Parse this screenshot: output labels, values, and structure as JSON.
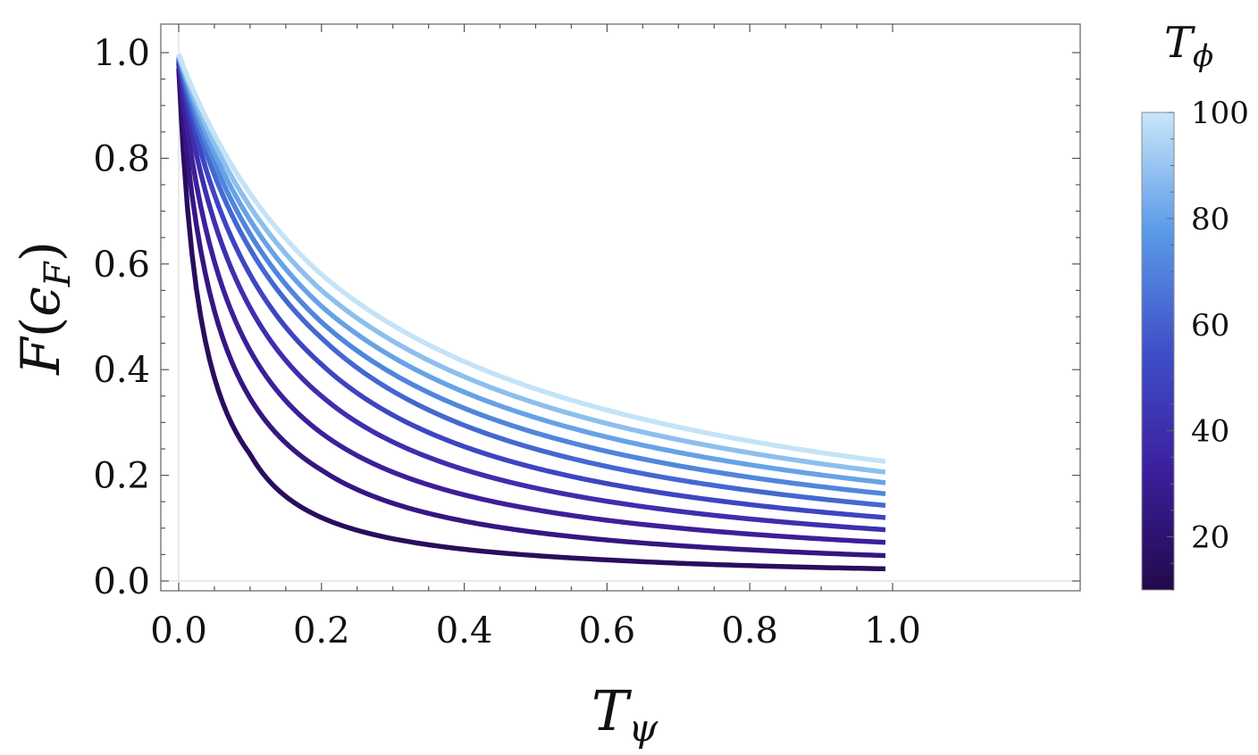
{
  "chart_data": {
    "type": "line",
    "title": "",
    "xlabel": {
      "main": "T",
      "sub": "ψ"
    },
    "ylabel": {
      "main": "F",
      "paren_open": "(",
      "inner": "ϵ",
      "inner_sub": "F",
      "paren_close": ")"
    },
    "xlim": [
      0,
      1
    ],
    "ylim": [
      0,
      1
    ],
    "x_ticks": [
      "0.0",
      "0.2",
      "0.4",
      "0.6",
      "0.8",
      "1.0"
    ],
    "y_ticks": [
      "0.0",
      "0.2",
      "0.4",
      "0.6",
      "0.8",
      "1.0"
    ],
    "grid": false,
    "x_range_plotted": [
      0,
      0.99
    ],
    "series": [
      {
        "k": 10,
        "color": "#2a0d5e",
        "values_at": {
          "x": [
            0,
            0.1,
            0.2,
            0.4,
            0.6,
            0.99
          ],
          "y": [
            0.97,
            0.24,
            0.12,
            0.06,
            0.04,
            0.023
          ]
        }
      },
      {
        "k": 20,
        "color": "#361683",
        "values_at": {
          "x": [
            0,
            0.2,
            0.99
          ],
          "y": [
            0.98,
            0.21,
            0.048
          ]
        }
      },
      {
        "k": 30,
        "color": "#3d1f9a",
        "values_at": {
          "x": [
            0,
            0.2,
            0.99
          ],
          "y": [
            0.985,
            0.28,
            0.073
          ]
        }
      },
      {
        "k": 40,
        "color": "#3d2fae",
        "values_at": {
          "x": [
            0,
            0.2,
            0.99
          ],
          "y": [
            0.99,
            0.35,
            0.097
          ]
        }
      },
      {
        "k": 50,
        "color": "#3e45c2",
        "values_at": {
          "x": [
            0,
            0.2,
            0.99
          ],
          "y": [
            0.99,
            0.41,
            0.12
          ]
        }
      },
      {
        "k": 60,
        "color": "#4468d0",
        "values_at": {
          "x": [
            0,
            0.2,
            0.99
          ],
          "y": [
            0.99,
            0.46,
            0.143
          ]
        }
      },
      {
        "k": 70,
        "color": "#4f86dc",
        "values_at": {
          "x": [
            0,
            0.2,
            0.99
          ],
          "y": [
            0.995,
            0.49,
            0.165
          ]
        }
      },
      {
        "k": 80,
        "color": "#67a2e6",
        "values_at": {
          "x": [
            0,
            0.2,
            0.99
          ],
          "y": [
            0.995,
            0.52,
            0.186
          ]
        }
      },
      {
        "k": 90,
        "color": "#8dbfee",
        "values_at": {
          "x": [
            0,
            0.2,
            0.99
          ],
          "y": [
            0.995,
            0.55,
            0.206
          ]
        }
      },
      {
        "k": 100,
        "color": "#c4e3f7",
        "values_at": {
          "x": [
            0,
            0.2,
            0.99
          ],
          "y": [
            0.997,
            0.58,
            0.226
          ]
        }
      }
    ],
    "colorbar": {
      "title": {
        "main": "T",
        "sub": "ϕ"
      },
      "range": [
        10,
        100
      ],
      "ticks": [
        "20",
        "40",
        "60",
        "80",
        "100"
      ],
      "tick_values": [
        20,
        40,
        60,
        80,
        100
      ],
      "gradient_stops": [
        "#230a4a",
        "#3b1f9e",
        "#3f4fc8",
        "#5a9ae8",
        "#c9e6f9"
      ]
    }
  }
}
